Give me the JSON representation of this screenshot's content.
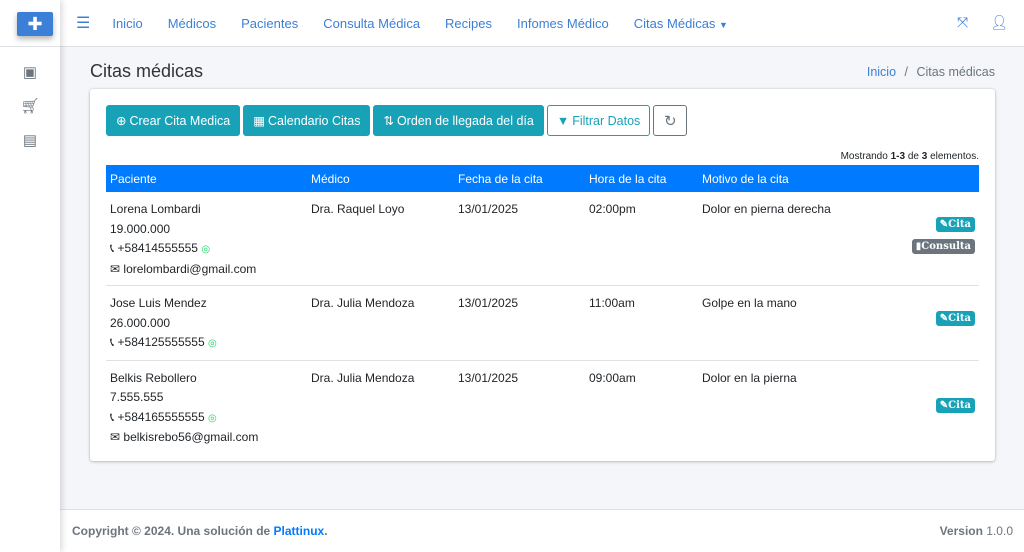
{
  "nav": {
    "items": [
      "Inicio",
      "Médicos",
      "Pacientes",
      "Consulta Médica",
      "Recipes",
      "Infomes Médico",
      "Citas Médicas"
    ]
  },
  "page": {
    "title": "Citas médicas",
    "breadcrumb_home": "Inicio",
    "breadcrumb_sep": "/",
    "breadcrumb_current": "Citas médicas"
  },
  "toolbar": {
    "create": "Crear Cita Medica",
    "calendar": "Calendario Citas",
    "order": "Orden de llegada del día",
    "filter": "Filtrar Datos"
  },
  "summary": {
    "prefix": "Mostrando ",
    "range": "1-3",
    "mid": " de ",
    "total": "3",
    "suffix": " elementos."
  },
  "table": {
    "headers": [
      "Paciente",
      "Médico",
      "Fecha de la cita",
      "Hora de la cita",
      "Motivo de la cita"
    ],
    "rows": [
      {
        "name": "Lorena Lombardi",
        "id": "19.000.000",
        "phone": "+58414555555",
        "email": "lorelombardi@gmail.com",
        "doctor": "Dra. Raquel Loyo",
        "date": "13/01/2025",
        "time": "02:00pm",
        "reason": "Dolor en pierna derecha",
        "badges": [
          "Cita",
          "Consulta"
        ]
      },
      {
        "name": "Jose Luis Mendez",
        "id": "26.000.000",
        "phone": "+584125555555",
        "doctor": "Dra. Julia Mendoza",
        "date": "13/01/2025",
        "time": "11:00am",
        "reason": "Golpe en la mano",
        "badges": [
          "Cita"
        ]
      },
      {
        "name": "Belkis Rebollero",
        "id": "7.555.555",
        "phone": "+584165555555",
        "email": "belkisrebo56@gmail.com",
        "doctor": "Dra. Julia Mendoza",
        "date": "13/01/2025",
        "time": "09:00am",
        "reason": "Dolor en la pierna",
        "badges": [
          "Cita"
        ]
      }
    ]
  },
  "footer": {
    "copyright": "Copyright © 2024. Una solución de ",
    "brand": "Plattinux",
    "dot": ".",
    "version_label": "Version",
    "version": "1.0.0"
  },
  "colors": {
    "primary": "#007bff",
    "info": "#17a2b8",
    "secondary": "#6c757d"
  }
}
